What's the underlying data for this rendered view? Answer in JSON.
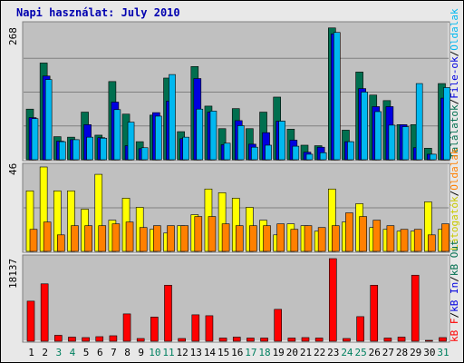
{
  "title": "Napi használat: July 2010",
  "colors": {
    "background": "#e8e8e8",
    "panel": "#c0c0c0",
    "talalatok": "#006f4f",
    "fileok": "#0000e0",
    "oldalak": "#00b8f0",
    "latogatok": "#ffff00",
    "kb_out": "#ff8000",
    "kb_in": "#00a000",
    "kb_f": "#ff0000",
    "title": "#0000b0"
  },
  "chart_data": [
    {
      "type": "bar",
      "panel": "top",
      "ymax_label": "268",
      "ylim": [
        0,
        268
      ],
      "categories": [
        "1",
        "2",
        "3",
        "4",
        "5",
        "6",
        "7",
        "8",
        "9",
        "10",
        "11",
        "12",
        "13",
        "14",
        "15",
        "16",
        "17",
        "18",
        "19",
        "20",
        "21",
        "22",
        "23",
        "24",
        "25",
        "26",
        "27",
        "28",
        "29",
        "30",
        "31"
      ],
      "weekend_days": [
        "3",
        "4",
        "10",
        "11",
        "17",
        "18",
        "24",
        "25",
        "31"
      ],
      "series": [
        {
          "name": "Találatok",
          "values": [
            101,
            193,
            46,
            45,
            95,
            49,
            156,
            91,
            36,
            89,
            163,
            56,
            186,
            107,
            62,
            102,
            62,
            95,
            125,
            61,
            29,
            28,
            263,
            59,
            175,
            129,
            118,
            70,
            70,
            23,
            152
          ]
        },
        {
          "name": "File-ok",
          "values": [
            84,
            167,
            37,
            40,
            70,
            44,
            115,
            28,
            22,
            94,
            117,
            42,
            162,
            95,
            30,
            78,
            31,
            54,
            77,
            39,
            15,
            25,
            251,
            36,
            142,
            106,
            106,
            70,
            24,
            11,
            123
          ]
        },
        {
          "name": "Oldalak",
          "values": [
            82,
            160,
            36,
            40,
            45,
            43,
            100,
            75,
            24,
            87,
            170,
            45,
            101,
            97,
            33,
            68,
            25,
            29,
            77,
            27,
            11,
            14,
            254,
            36,
            135,
            96,
            69,
            66,
            152,
            11,
            144
          ]
        }
      ],
      "legend": [
        "Találatok",
        "File-ok",
        "Oldalak"
      ]
    },
    {
      "type": "bar",
      "panel": "middle",
      "ymax_label": "46",
      "ylim": [
        0,
        46
      ],
      "categories": [
        "1",
        "2",
        "3",
        "4",
        "5",
        "6",
        "7",
        "8",
        "9",
        "10",
        "11",
        "12",
        "13",
        "14",
        "15",
        "16",
        "17",
        "18",
        "19",
        "20",
        "21",
        "22",
        "23",
        "24",
        "25",
        "26",
        "27",
        "28",
        "29",
        "30",
        "31"
      ],
      "series": [
        {
          "name": "Látogatók",
          "values": [
            33,
            46,
            33,
            33,
            23,
            42,
            17,
            29,
            24,
            12,
            10,
            14,
            20,
            34,
            32,
            29,
            24,
            17,
            9,
            15,
            14,
            11,
            34,
            16,
            26,
            13,
            12,
            11,
            11,
            27,
            12
          ]
        },
        {
          "name": "Oldalak",
          "values": [
            12,
            16,
            9,
            14,
            14,
            14,
            15,
            16,
            13,
            14,
            14,
            14,
            19,
            19,
            15,
            14,
            14,
            14,
            15,
            12,
            14,
            13,
            14,
            21,
            19,
            17,
            14,
            12,
            12,
            9,
            15
          ]
        }
      ],
      "legend": [
        "Látogatók",
        "Oldalak"
      ]
    },
    {
      "type": "bar",
      "panel": "bottom",
      "ymax_label": "18137",
      "ylim": [
        0,
        18137
      ],
      "categories": [
        "1",
        "2",
        "3",
        "4",
        "5",
        "6",
        "7",
        "8",
        "9",
        "10",
        "11",
        "12",
        "13",
        "14",
        "15",
        "16",
        "17",
        "18",
        "19",
        "20",
        "21",
        "22",
        "23",
        "24",
        "25",
        "26",
        "27",
        "28",
        "29",
        "30",
        "31"
      ],
      "series": [
        {
          "name": "kB F",
          "values": [
            8800,
            12600,
            1300,
            900,
            800,
            1000,
            1200,
            6000,
            600,
            5300,
            12300,
            600,
            5800,
            5600,
            700,
            900,
            700,
            700,
            7000,
            700,
            800,
            700,
            18137,
            600,
            5400,
            12300,
            700,
            900,
            14500,
            200,
            800
          ]
        },
        {
          "name": "kB In",
          "values": [
            0,
            0,
            0,
            0,
            0,
            0,
            0,
            0,
            0,
            0,
            0,
            0,
            0,
            0,
            0,
            0,
            0,
            0,
            0,
            0,
            0,
            0,
            0,
            0,
            0,
            0,
            0,
            0,
            0,
            0,
            0
          ]
        },
        {
          "name": "kB Out",
          "values": [
            0,
            0,
            0,
            0,
            0,
            0,
            0,
            0,
            0,
            0,
            0,
            0,
            0,
            0,
            0,
            0,
            0,
            0,
            0,
            0,
            0,
            0,
            0,
            0,
            0,
            0,
            0,
            0,
            0,
            0,
            0
          ]
        }
      ],
      "legend": [
        "kB F",
        "kB In",
        "kB Out"
      ]
    }
  ]
}
